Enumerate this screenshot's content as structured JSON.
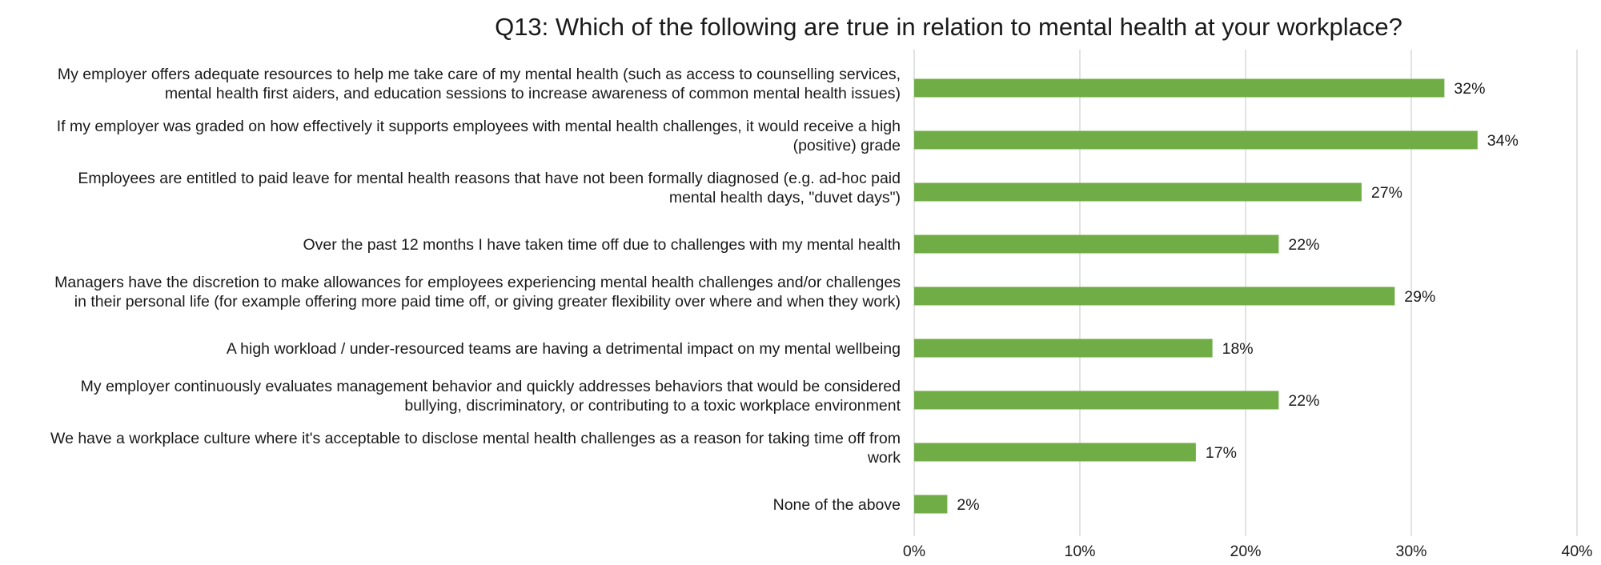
{
  "chart_data": {
    "type": "bar",
    "orientation": "horizontal",
    "title": "Q13: Which of the following are true in relation to mental health at your workplace?",
    "xlabel": "",
    "ylabel": "",
    "xlim": [
      0,
      40
    ],
    "x_ticks": [
      "0%",
      "10%",
      "20%",
      "30%",
      "40%"
    ],
    "grid": true,
    "bar_color": "#70ad47",
    "categories": [
      [
        "My employer offers adequate resources to help me take care of my mental health (such as access to counselling services,",
        "mental health first aiders, and education sessions to increase awareness of common mental health issues)"
      ],
      [
        "If my employer was graded on how effectively it supports employees with mental health challenges, it would receive a high",
        "(positive) grade"
      ],
      [
        "Employees are entitled to paid leave for mental health reasons that have not been formally diagnosed (e.g. ad-hoc paid",
        "mental health days, \"duvet days\")"
      ],
      [
        "Over the past 12 months I have taken time off due to challenges with my mental health"
      ],
      [
        "Managers have the discretion to make allowances for employees experiencing mental health challenges and/or challenges",
        "in their personal life (for example offering more paid time off, or giving greater flexibility over where and when they work)"
      ],
      [
        "A high workload / under-resourced teams are having a detrimental impact on my mental wellbeing"
      ],
      [
        "My employer continuously evaluates management behavior and quickly addresses behaviors that would be considered",
        "bullying, discriminatory, or contributing to a toxic workplace environment"
      ],
      [
        "We have a workplace culture where it's acceptable to disclose mental health challenges as a reason for taking time off from",
        "work"
      ],
      [
        "None of the above"
      ]
    ],
    "values": [
      32,
      34,
      27,
      22,
      29,
      18,
      22,
      17,
      2
    ],
    "data_labels": [
      "32%",
      "34%",
      "27%",
      "22%",
      "29%",
      "18%",
      "22%",
      "17%",
      "2%"
    ]
  }
}
